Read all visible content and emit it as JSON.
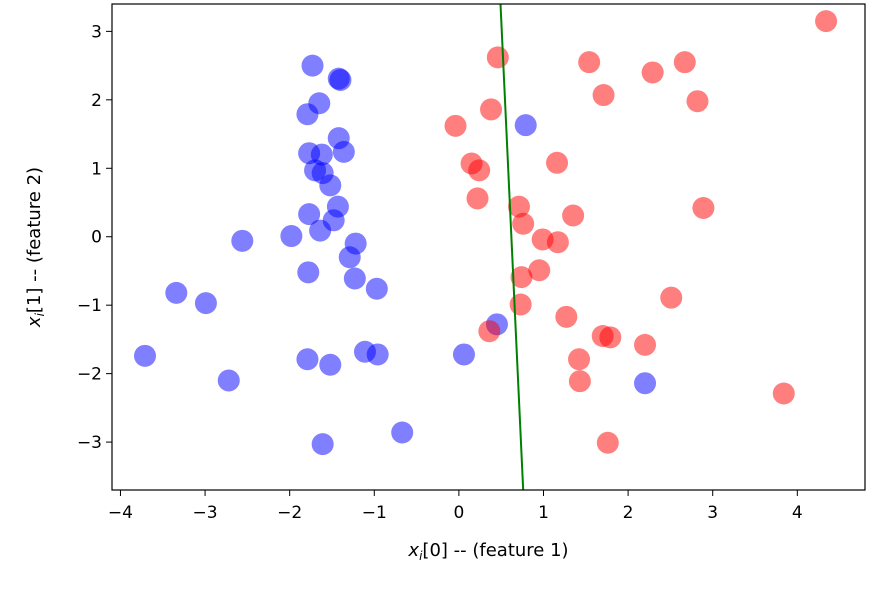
{
  "chart_data": {
    "type": "scatter",
    "title": "",
    "xlabel": {
      "base": "x",
      "sub": "i",
      "rest": "[0] -- (feature 1)"
    },
    "ylabel": {
      "base": "x",
      "sub": "i",
      "rest": "[1] -- (feature 2)"
    },
    "xlim": [
      -4.1,
      4.8
    ],
    "ylim": [
      -3.7,
      3.4
    ],
    "xticks": [
      -4,
      -3,
      -2,
      -1,
      0,
      1,
      2,
      3,
      4
    ],
    "yticks": [
      -3,
      -2,
      -1,
      0,
      1,
      2,
      3
    ],
    "grid": false,
    "legend": "none",
    "series": [
      {
        "color": "#0000ff",
        "points": [
          [
            -1.73,
            2.5
          ],
          [
            -1.42,
            2.31
          ],
          [
            -1.4,
            2.29
          ],
          [
            -1.65,
            1.95
          ],
          [
            -1.79,
            1.79
          ],
          [
            -1.42,
            1.44
          ],
          [
            -1.36,
            1.24
          ],
          [
            -1.77,
            1.22
          ],
          [
            -1.62,
            1.2
          ],
          [
            -1.7,
            0.97
          ],
          [
            -1.61,
            0.93
          ],
          [
            -1.52,
            0.75
          ],
          [
            -1.43,
            0.44
          ],
          [
            -1.77,
            0.33
          ],
          [
            -1.48,
            0.24
          ],
          [
            -1.64,
            0.09
          ],
          [
            -2.56,
            -0.06
          ],
          [
            -1.98,
            0.01
          ],
          [
            -1.22,
            -0.1
          ],
          [
            -1.29,
            -0.3
          ],
          [
            -1.78,
            -0.52
          ],
          [
            -1.23,
            -0.61
          ],
          [
            -0.97,
            -0.76
          ],
          [
            -3.34,
            -0.82
          ],
          [
            -2.99,
            -0.97
          ],
          [
            -3.71,
            -1.74
          ],
          [
            -1.79,
            -1.79
          ],
          [
            -1.52,
            -1.87
          ],
          [
            -1.11,
            -1.68
          ],
          [
            -0.96,
            -1.72
          ],
          [
            -2.72,
            -2.1
          ],
          [
            -0.67,
            -2.86
          ],
          [
            -1.61,
            -3.03
          ],
          [
            0.45,
            -1.28
          ],
          [
            0.06,
            -1.72
          ],
          [
            0.79,
            1.63
          ],
          [
            2.2,
            -2.14
          ]
        ]
      },
      {
        "color": "#ff0000",
        "points": [
          [
            4.34,
            3.15
          ],
          [
            0.46,
            2.62
          ],
          [
            1.54,
            2.55
          ],
          [
            2.67,
            2.55
          ],
          [
            2.29,
            2.4
          ],
          [
            1.71,
            2.07
          ],
          [
            2.82,
            1.98
          ],
          [
            0.38,
            1.86
          ],
          [
            -0.04,
            1.62
          ],
          [
            0.15,
            1.07
          ],
          [
            0.24,
            0.97
          ],
          [
            1.16,
            1.08
          ],
          [
            0.22,
            0.56
          ],
          [
            0.71,
            0.44
          ],
          [
            2.89,
            0.42
          ],
          [
            1.35,
            0.31
          ],
          [
            0.76,
            0.19
          ],
          [
            0.99,
            -0.04
          ],
          [
            1.17,
            -0.08
          ],
          [
            0.95,
            -0.49
          ],
          [
            0.74,
            -0.59
          ],
          [
            2.51,
            -0.89
          ],
          [
            0.73,
            -0.99
          ],
          [
            1.27,
            -1.17
          ],
          [
            0.36,
            -1.38
          ],
          [
            1.7,
            -1.45
          ],
          [
            1.79,
            -1.47
          ],
          [
            2.2,
            -1.58
          ],
          [
            1.42,
            -1.79
          ],
          [
            1.43,
            -2.11
          ],
          [
            1.76,
            -3.01
          ],
          [
            3.84,
            -2.29
          ]
        ]
      }
    ],
    "line": {
      "color": "#008000",
      "points": [
        [
          0.49,
          3.45
        ],
        [
          0.76,
          -3.7
        ]
      ]
    }
  }
}
